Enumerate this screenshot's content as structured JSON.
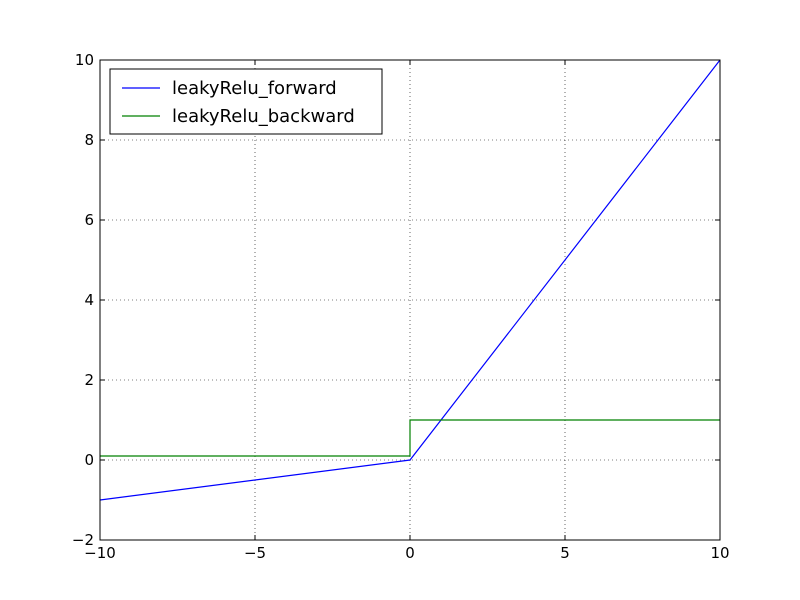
{
  "chart_data": {
    "type": "line",
    "title": "",
    "xlabel": "",
    "ylabel": "",
    "xlim": [
      -10,
      10
    ],
    "ylim": [
      -2,
      10
    ],
    "xticks": [
      -10,
      -5,
      0,
      5,
      10
    ],
    "yticks": [
      -2,
      0,
      2,
      4,
      6,
      8,
      10
    ],
    "x_tick_labels": [
      "−10",
      "−5",
      "0",
      "5",
      "10"
    ],
    "y_tick_labels": [
      "−2",
      "0",
      "2",
      "4",
      "6",
      "8",
      "10"
    ],
    "grid": true,
    "grid_style": "dotted",
    "legend_placement": "upper-left",
    "series": [
      {
        "name": "leakyRelu_forward",
        "color": "#0000ff",
        "x": [
          -10,
          0,
          10
        ],
        "y": [
          -1,
          0,
          10
        ]
      },
      {
        "name": "leakyRelu_backward",
        "color": "#008000",
        "x": [
          -10,
          0,
          0,
          10
        ],
        "y": [
          0.1,
          0.1,
          1,
          1
        ]
      }
    ]
  }
}
